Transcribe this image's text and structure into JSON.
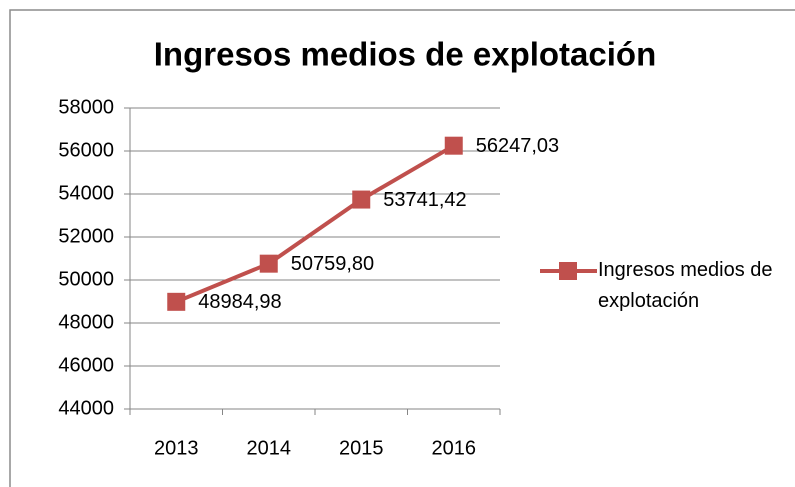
{
  "chart_data": {
    "type": "line",
    "title": "Ingresos medios de explotación",
    "categories": [
      "2013",
      "2014",
      "2015",
      "2016"
    ],
    "series": [
      {
        "name": "Ingresos medios de explotación",
        "color": "#c0504d",
        "values": [
          48984.98,
          50759.8,
          53741.42,
          56247.03
        ],
        "value_labels": [
          "48984,98",
          "50759,80",
          "53741,42",
          "56247,03"
        ]
      }
    ],
    "ylim": [
      44000,
      58000
    ],
    "yticks": [
      44000,
      46000,
      48000,
      50000,
      52000,
      54000,
      56000,
      58000
    ],
    "grid": true,
    "legend": "right"
  }
}
